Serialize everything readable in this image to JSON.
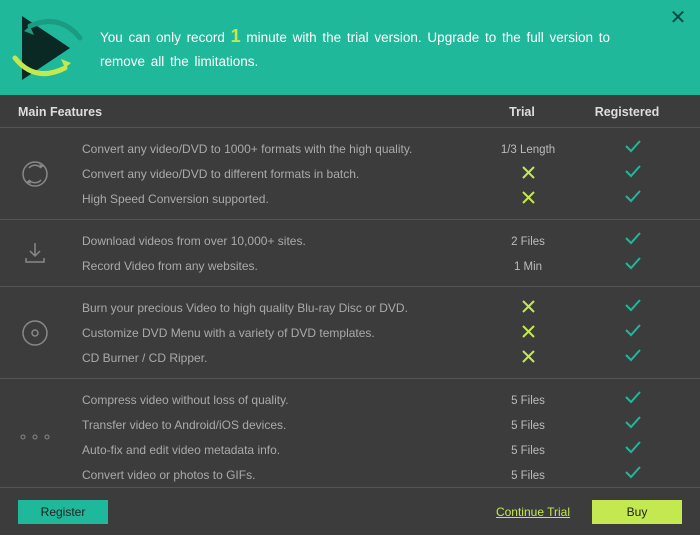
{
  "colors": {
    "teal": "#1fb89a",
    "lime": "#c3e850",
    "bg": "#3c3c3c",
    "text_muted": "#aaa",
    "divider": "#555"
  },
  "banner": {
    "text_pre": "You can only record ",
    "highlight": "1",
    "text_post": " minute with the trial version. Upgrade to the full version to remove all the limitations."
  },
  "headers": {
    "main": "Main Features",
    "trial": "Trial",
    "registered": "Registered"
  },
  "sections": [
    {
      "icon": "convert",
      "rows": [
        {
          "desc": "Convert any video/DVD to 1000+ formats with the high quality.",
          "trial": "1/3 Length",
          "trial_type": "text"
        },
        {
          "desc": "Convert any video/DVD to different formats in batch.",
          "trial": "x",
          "trial_type": "cross"
        },
        {
          "desc": "High Speed Conversion supported.",
          "trial": "x",
          "trial_type": "cross"
        }
      ]
    },
    {
      "icon": "download",
      "rows": [
        {
          "desc": "Download videos from over 10,000+ sites.",
          "trial": "2 Files",
          "trial_type": "text"
        },
        {
          "desc": "Record Video from any websites.",
          "trial": "1 Min",
          "trial_type": "text"
        }
      ]
    },
    {
      "icon": "burn",
      "rows": [
        {
          "desc": "Burn your precious Video to high quality Blu-ray Disc or DVD.",
          "trial": "x",
          "trial_type": "cross"
        },
        {
          "desc": "Customize DVD Menu with a variety of DVD templates.",
          "trial": "x",
          "trial_type": "cross"
        },
        {
          "desc": "CD Burner / CD Ripper.",
          "trial": "x",
          "trial_type": "cross"
        }
      ]
    },
    {
      "icon": "more",
      "rows": [
        {
          "desc": "Compress video without loss of quality.",
          "trial": "5 Files",
          "trial_type": "text"
        },
        {
          "desc": "Transfer video to Android/iOS devices.",
          "trial": "5 Files",
          "trial_type": "text"
        },
        {
          "desc": "Auto-fix and edit video metadata info.",
          "trial": "5 Files",
          "trial_type": "text"
        },
        {
          "desc": "Convert video or photos to GIFs.",
          "trial": "5 Files",
          "trial_type": "text"
        }
      ]
    }
  ],
  "footer": {
    "register": "Register",
    "continue": "Continue Trial",
    "buy": "Buy"
  }
}
